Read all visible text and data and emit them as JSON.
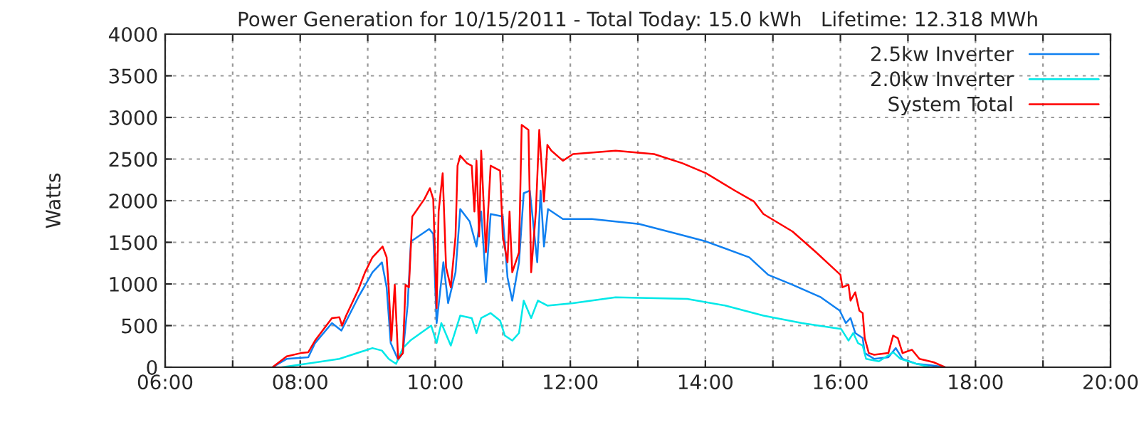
{
  "chart_data": {
    "type": "line",
    "title": "Power Generation for 10/15/2011 - Total Today: 15.0 kWh   Lifetime: 12.318 MWh",
    "ylabel": "Watts",
    "xlim": [
      6,
      20
    ],
    "xticks": [
      {
        "value": 6,
        "label": "06:00"
      },
      {
        "value": 7,
        "label": null
      },
      {
        "value": 8,
        "label": "08:00"
      },
      {
        "value": 9,
        "label": null
      },
      {
        "value": 10,
        "label": "10:00"
      },
      {
        "value": 11,
        "label": null
      },
      {
        "value": 12,
        "label": "12:00"
      },
      {
        "value": 13,
        "label": null
      },
      {
        "value": 14,
        "label": "14:00"
      },
      {
        "value": 15,
        "label": null
      },
      {
        "value": 16,
        "label": "16:00"
      },
      {
        "value": 17,
        "label": null
      },
      {
        "value": 18,
        "label": "18:00"
      },
      {
        "value": 19,
        "label": null
      },
      {
        "value": 20,
        "label": "20:00"
      }
    ],
    "ylim": [
      0,
      4000
    ],
    "yticks": [
      0,
      500,
      1000,
      1500,
      2000,
      2500,
      3000,
      3500,
      4000
    ],
    "grid": true,
    "legend": "top right",
    "line_style": "solid",
    "series": [
      {
        "name": "2.5kw Inverter",
        "color": "#1080f0",
        "x": [
          7.59,
          7.8,
          8.12,
          8.22,
          8.47,
          8.61,
          8.86,
          9.07,
          9.21,
          9.28,
          9.34,
          9.45,
          9.52,
          9.59,
          9.64,
          9.91,
          9.97,
          10.02,
          10.12,
          10.19,
          10.3,
          10.37,
          10.51,
          10.61,
          10.68,
          10.75,
          10.82,
          11.0,
          11.07,
          11.14,
          11.24,
          11.31,
          11.4,
          11.44,
          11.51,
          11.56,
          11.61,
          11.67,
          11.89,
          12.32,
          13.02,
          13.59,
          14.01,
          14.65,
          14.93,
          15.29,
          15.71,
          15.99,
          16.08,
          16.15,
          16.22,
          16.33,
          16.36,
          16.5,
          16.71,
          16.82,
          16.92,
          17.13,
          17.38,
          17.55
        ],
        "values": [
          0,
          100,
          120,
          290,
          530,
          440,
          840,
          1140,
          1260,
          960,
          290,
          90,
          170,
          740,
          1510,
          1660,
          1600,
          530,
          1260,
          770,
          1140,
          1900,
          1750,
          1450,
          1870,
          1020,
          1840,
          1810,
          1080,
          800,
          1260,
          2090,
          2120,
          1810,
          1260,
          2120,
          1450,
          1900,
          1780,
          1780,
          1720,
          1600,
          1510,
          1320,
          1110,
          990,
          840,
          680,
          530,
          590,
          410,
          350,
          170,
          100,
          120,
          230,
          100,
          40,
          20,
          0
        ]
      },
      {
        "name": "2.0kw Inverter",
        "color": "#00e8e8",
        "x": [
          7.73,
          8.08,
          8.58,
          9.07,
          9.21,
          9.31,
          9.42,
          9.52,
          9.63,
          9.94,
          10.02,
          10.09,
          10.23,
          10.37,
          10.54,
          10.61,
          10.68,
          10.82,
          10.96,
          11.03,
          11.14,
          11.24,
          11.31,
          11.42,
          11.52,
          11.66,
          12.04,
          12.67,
          13.73,
          14.3,
          14.86,
          15.43,
          15.92,
          16.01,
          16.12,
          16.19,
          16.26,
          16.33,
          16.38,
          16.57,
          16.78,
          16.89,
          17.13,
          17.34
        ],
        "values": [
          0,
          40,
          100,
          230,
          200,
          100,
          40,
          230,
          320,
          500,
          290,
          530,
          260,
          620,
          590,
          410,
          590,
          650,
          560,
          380,
          320,
          410,
          800,
          590,
          800,
          740,
          770,
          840,
          820,
          740,
          620,
          530,
          470,
          460,
          320,
          410,
          290,
          260,
          100,
          70,
          180,
          100,
          40,
          0
        ]
      },
      {
        "name": "System Total",
        "color": "#ff0000",
        "x": [
          7.59,
          7.8,
          8.01,
          8.12,
          8.22,
          8.47,
          8.58,
          8.62,
          8.68,
          8.86,
          8.96,
          9.07,
          9.22,
          9.28,
          9.31,
          9.35,
          9.4,
          9.45,
          9.52,
          9.56,
          9.61,
          9.66,
          9.84,
          9.92,
          9.97,
          10.02,
          10.05,
          10.11,
          10.16,
          10.23,
          10.3,
          10.33,
          10.37,
          10.47,
          10.54,
          10.58,
          10.61,
          10.65,
          10.68,
          10.75,
          10.82,
          10.96,
          11.0,
          11.07,
          11.1,
          11.14,
          11.24,
          11.28,
          11.38,
          11.42,
          11.49,
          11.54,
          11.61,
          11.66,
          11.72,
          11.89,
          12.04,
          12.67,
          13.24,
          13.66,
          14.01,
          14.44,
          14.72,
          14.86,
          15.29,
          15.64,
          15.92,
          16.0,
          16.03,
          16.12,
          16.15,
          16.22,
          16.28,
          16.33,
          16.36,
          16.42,
          16.5,
          16.71,
          16.78,
          16.85,
          16.92,
          17.06,
          17.17,
          17.38,
          17.55
        ],
        "values": [
          0,
          130,
          170,
          180,
          320,
          590,
          600,
          500,
          620,
          930,
          1140,
          1320,
          1450,
          1320,
          960,
          320,
          990,
          100,
          170,
          990,
          960,
          1810,
          2020,
          2150,
          2020,
          710,
          1870,
          2330,
          1200,
          960,
          1570,
          2420,
          2540,
          2450,
          2420,
          1870,
          2480,
          1570,
          2600,
          1380,
          2420,
          2360,
          1570,
          1260,
          1870,
          1140,
          1380,
          2910,
          2850,
          1140,
          1870,
          2850,
          1990,
          2670,
          2600,
          2480,
          2560,
          2600,
          2560,
          2450,
          2330,
          2120,
          1990,
          1840,
          1630,
          1380,
          1170,
          1110,
          960,
          990,
          800,
          900,
          680,
          650,
          350,
          170,
          150,
          170,
          380,
          350,
          170,
          210,
          100,
          60,
          0
        ]
      }
    ]
  }
}
